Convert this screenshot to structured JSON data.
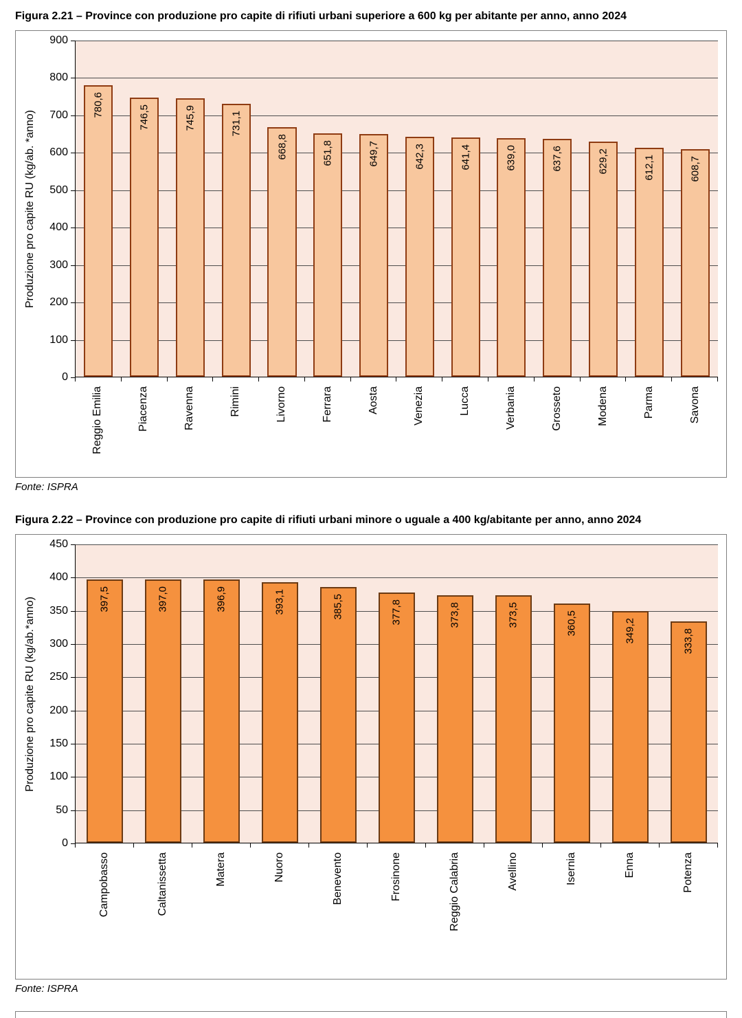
{
  "figures": [
    {
      "title": "Figura 2.21 – Province con produzione pro capite di rifiuti urbani superiore a 600 kg per abitante per anno, anno 2024",
      "source": "Fonte: ISPRA"
    },
    {
      "title": "Figura 2.22 – Province con produzione pro capite di rifiuti urbani minore o uguale a 400 kg/abitante per anno, anno 2024",
      "source": "Fonte: ISPRA"
    }
  ],
  "chart_data": [
    {
      "type": "bar",
      "title": "Province con produzione pro capite di rifiuti urbani superiore a 600 kg per abitante per anno, anno 2024",
      "ylabel": "Produzione pro capite RU (kg/ab. *anno)",
      "xlabel": "",
      "ylim": [
        0,
        900
      ],
      "ytick_step": 100,
      "grid": true,
      "legend": "none",
      "bar_fill": "#f8c79e",
      "bar_border": "#8e3b12",
      "plot_background": "#fae8e0",
      "categories": [
        "Reggio Emilia",
        "Piacenza",
        "Ravenna",
        "Rimini",
        "Livorno",
        "Ferrara",
        "Aosta",
        "Venezia",
        "Lucca",
        "Verbania",
        "Grosseto",
        "Modena",
        "Parma",
        "Savona"
      ],
      "values": [
        780.6,
        746.5,
        745.9,
        731.1,
        668.8,
        651.8,
        649.7,
        642.3,
        641.4,
        639.0,
        637.6,
        629.2,
        612.1,
        608.7
      ],
      "value_labels": [
        "780,6",
        "746,5",
        "745,9",
        "731,1",
        "668,8",
        "651,8",
        "649,7",
        "642,3",
        "641,4",
        "639,0",
        "637,6",
        "629,2",
        "612,1",
        "608,7"
      ]
    },
    {
      "type": "bar",
      "title": "Province con produzione pro capite di rifiuti urbani minore o uguale a 400 kg/abitante per anno, anno 2024",
      "ylabel": "Produzione pro capite RU (kg/ab.*anno)",
      "xlabel": "",
      "ylim": [
        0,
        450
      ],
      "ytick_step": 50,
      "grid": true,
      "legend": "none",
      "bar_fill": "#f5913e",
      "bar_border": "#6b3a13",
      "plot_background": "#fae8e0",
      "categories": [
        "Campobasso",
        "Caltanissetta",
        "Matera",
        "Nuoro",
        "Benevento",
        "Frosinone",
        "Reggio Calabria",
        "Avellino",
        "Isernia",
        "Enna",
        "Potenza"
      ],
      "values": [
        397.5,
        397.0,
        396.9,
        393.1,
        385.5,
        377.8,
        373.8,
        373.5,
        360.5,
        349.2,
        333.8
      ],
      "value_labels": [
        "397,5",
        "397,0",
        "396,9",
        "393,1",
        "385,5",
        "377,8",
        "373,8",
        "373,5",
        "360,5",
        "349,2",
        "333,8"
      ]
    }
  ]
}
